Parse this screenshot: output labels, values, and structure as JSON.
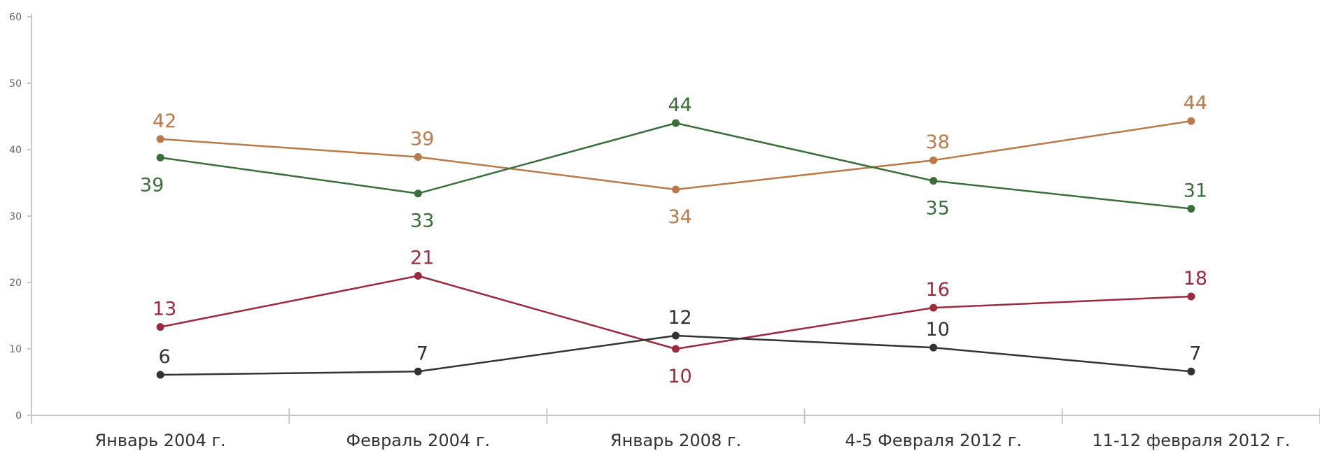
{
  "chart_data": {
    "type": "line",
    "title": "",
    "xlabel": "",
    "ylabel": "",
    "categories": [
      "Январь 2004 г.",
      "Февраль 2004 г.",
      "Январь 2008 г.",
      "4-5 Февраля 2012 г.",
      "11-12 февраля 2012 г."
    ],
    "ylim": [
      0,
      60
    ],
    "yticks": [
      0,
      10,
      20,
      30,
      40,
      50,
      60
    ],
    "grid": false,
    "legend": "none",
    "series": [
      {
        "color": "#b87a4b",
        "values": [
          42,
          39,
          34,
          38,
          44
        ],
        "plot_values": [
          41.6,
          38.9,
          34.0,
          38.4,
          44.3
        ],
        "label_side": [
          "above",
          "above",
          "below",
          "above",
          "above"
        ]
      },
      {
        "color": "#3b6e3b",
        "values": [
          39,
          33,
          44,
          35,
          31
        ],
        "plot_values": [
          38.8,
          33.4,
          44.0,
          35.3,
          31.1
        ],
        "label_side": [
          "below",
          "below",
          "above",
          "below",
          "above"
        ]
      },
      {
        "color": "#9b2a3f",
        "values": [
          13,
          21,
          10,
          16,
          18
        ],
        "plot_values": [
          13.3,
          21.0,
          10.0,
          16.2,
          17.9
        ],
        "label_side": [
          "above",
          "above",
          "below",
          "above",
          "above"
        ]
      },
      {
        "color": "#333333",
        "values": [
          6,
          7,
          12,
          10,
          7
        ],
        "plot_values": [
          6.1,
          6.6,
          12.0,
          10.2,
          6.6
        ],
        "label_side": [
          "above",
          "above",
          "above",
          "above",
          "above"
        ]
      }
    ]
  }
}
